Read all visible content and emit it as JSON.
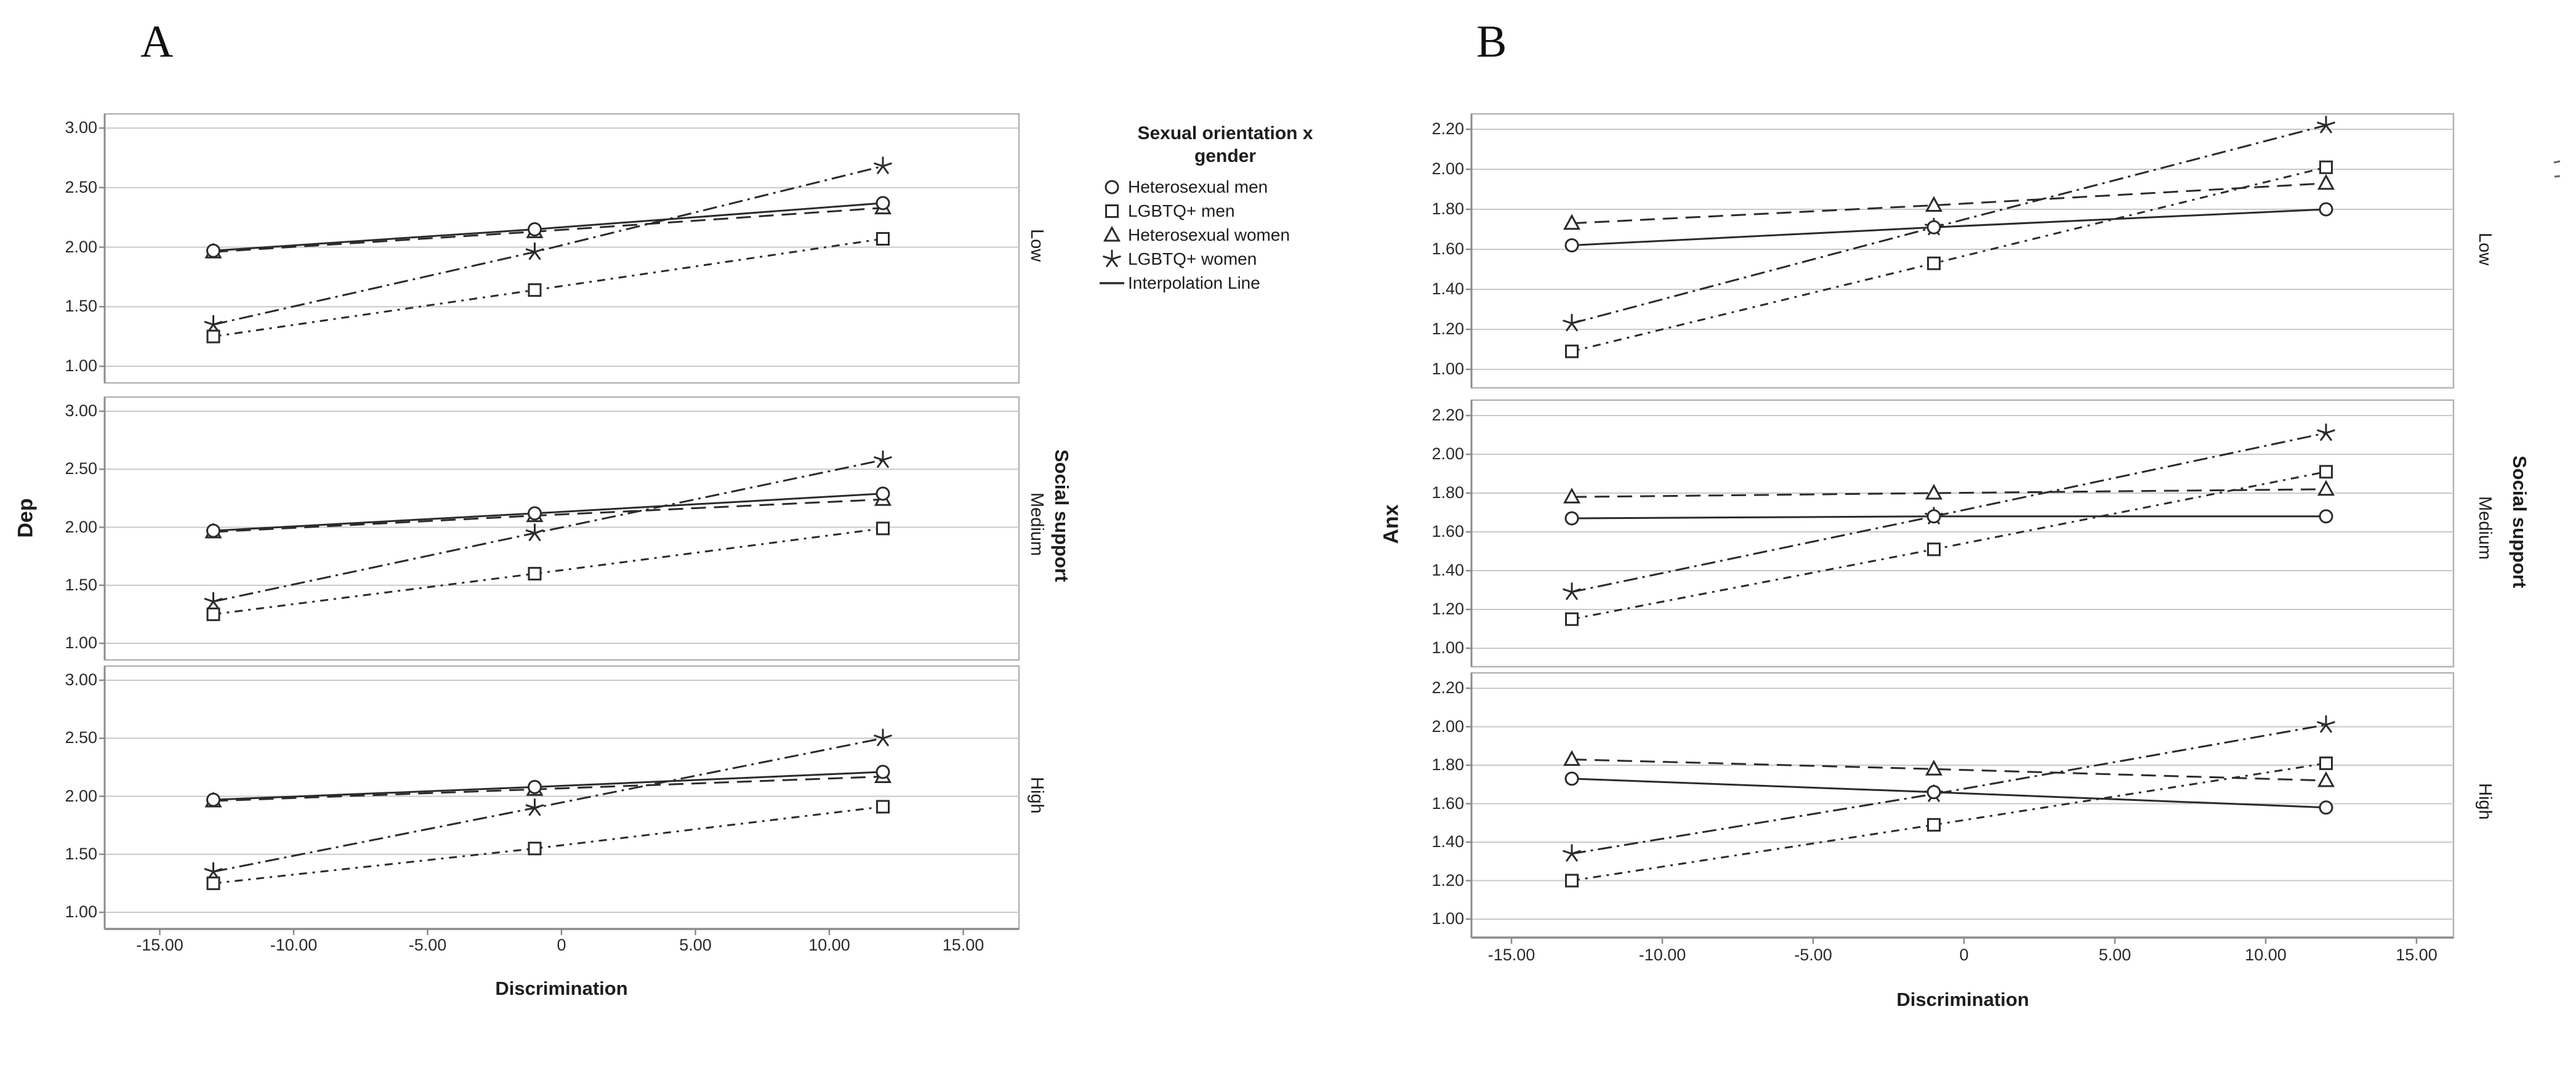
{
  "colors": {
    "series": "#2b2b2b",
    "grid": "#c9c9c9",
    "frame": "#b3b3b3",
    "axis": "#8c8c8c",
    "background": "#ffffff",
    "text": "#1d1d1d"
  },
  "legend": {
    "title_line1": "Sexual orientation x",
    "title_line2": "gender",
    "items": [
      {
        "marker": "circle",
        "label": "Heterosexual men"
      },
      {
        "marker": "square",
        "label": "LGBTQ+ men"
      },
      {
        "marker": "triangle",
        "label": "Heterosexual women"
      },
      {
        "marker": "star",
        "label": "LGBTQ+ women"
      },
      {
        "marker": "line",
        "label": "Interpolation Line"
      }
    ]
  },
  "chart_data": [
    {
      "type": "line",
      "panel_title": "A",
      "ylabel": "Dep",
      "xlabel": "Discrimination",
      "facet_axis_label": "Social support",
      "x": [
        -13,
        -1,
        12
      ],
      "x_tick_values": [
        -15,
        -10,
        -5,
        0,
        5,
        10,
        15
      ],
      "x_tick_labels": [
        "-15.00",
        "-10.00",
        "-5.00",
        "0",
        "5.00",
        "10.00",
        "15.00"
      ],
      "y_tick_values": [
        3.0,
        2.5,
        2.0,
        1.5,
        1.0
      ],
      "y_tick_labels": [
        "3.00",
        "2.50",
        "2.00",
        "1.50",
        "1.00"
      ],
      "ylim": [
        1.0,
        3.0
      ],
      "grid": true,
      "legend_position": "right-of-panel",
      "facets": [
        {
          "label": "Low",
          "series": [
            {
              "name": "Heterosexual men",
              "marker": "circle",
              "dash": "solid",
              "values": [
                1.97,
                2.15,
                2.37
              ]
            },
            {
              "name": "LGBTQ+ men",
              "marker": "square",
              "dash": "dash-dot-short",
              "values": [
                1.25,
                1.64,
                2.07
              ]
            },
            {
              "name": "Heterosexual women",
              "marker": "triangle",
              "dash": "dashed",
              "values": [
                1.96,
                2.13,
                2.33
              ]
            },
            {
              "name": "LGBTQ+ women",
              "marker": "star",
              "dash": "dash-dot",
              "values": [
                1.35,
                1.96,
                2.68
              ]
            }
          ]
        },
        {
          "label": "Medium",
          "series": [
            {
              "name": "Heterosexual men",
              "marker": "circle",
              "dash": "solid",
              "values": [
                1.97,
                2.12,
                2.29
              ]
            },
            {
              "name": "LGBTQ+ men",
              "marker": "square",
              "dash": "dash-dot-short",
              "values": [
                1.25,
                1.6,
                1.99
              ]
            },
            {
              "name": "Heterosexual women",
              "marker": "triangle",
              "dash": "dashed",
              "values": [
                1.96,
                2.1,
                2.24
              ]
            },
            {
              "name": "LGBTQ+ women",
              "marker": "star",
              "dash": "dash-dot",
              "values": [
                1.36,
                1.95,
                2.58
              ]
            }
          ]
        },
        {
          "label": "High",
          "series": [
            {
              "name": "Heterosexual men",
              "marker": "circle",
              "dash": "solid",
              "values": [
                1.97,
                2.08,
                2.21
              ]
            },
            {
              "name": "LGBTQ+ men",
              "marker": "square",
              "dash": "dash-dot-short",
              "values": [
                1.25,
                1.55,
                1.91
              ]
            },
            {
              "name": "Heterosexual women",
              "marker": "triangle",
              "dash": "dashed",
              "values": [
                1.96,
                2.06,
                2.17
              ]
            },
            {
              "name": "LGBTQ+ women",
              "marker": "star",
              "dash": "dash-dot",
              "values": [
                1.35,
                1.9,
                2.5
              ]
            }
          ]
        }
      ]
    },
    {
      "type": "line",
      "panel_title": "B",
      "ylabel": "Anx",
      "xlabel": "Discrimination",
      "facet_axis_label": "Social support",
      "x": [
        -13,
        -1,
        12
      ],
      "x_tick_values": [
        -15,
        -10,
        -5,
        0,
        5,
        10,
        15
      ],
      "x_tick_labels": [
        "-15.00",
        "-10.00",
        "-5.00",
        "0",
        "5.00",
        "10.00",
        "15.00"
      ],
      "y_tick_values": [
        2.2,
        2.0,
        1.8,
        1.6,
        1.4,
        1.2,
        1.0
      ],
      "y_tick_labels": [
        "2.20",
        "2.00",
        "1.80",
        "1.60",
        "1.40",
        "1.20",
        "1.00"
      ],
      "ylim": [
        1.0,
        2.2
      ],
      "grid": true,
      "legend_position": "left-of-panel",
      "facets": [
        {
          "label": "Low",
          "series": [
            {
              "name": "Heterosexual men",
              "marker": "circle",
              "dash": "solid",
              "values": [
                1.62,
                1.71,
                1.8
              ]
            },
            {
              "name": "LGBTQ+ men",
              "marker": "square",
              "dash": "dash-dot-short",
              "values": [
                1.09,
                1.53,
                2.01
              ]
            },
            {
              "name": "Heterosexual women",
              "marker": "triangle",
              "dash": "dashed",
              "values": [
                1.73,
                1.82,
                1.93
              ]
            },
            {
              "name": "LGBTQ+ women",
              "marker": "star",
              "dash": "dash-dot",
              "values": [
                1.23,
                1.71,
                2.22
              ]
            }
          ]
        },
        {
          "label": "Medium",
          "series": [
            {
              "name": "Heterosexual men",
              "marker": "circle",
              "dash": "solid",
              "values": [
                1.67,
                1.68,
                1.68
              ]
            },
            {
              "name": "LGBTQ+ men",
              "marker": "square",
              "dash": "dash-dot-short",
              "values": [
                1.15,
                1.51,
                1.91
              ]
            },
            {
              "name": "Heterosexual women",
              "marker": "triangle",
              "dash": "dashed",
              "values": [
                1.78,
                1.8,
                1.82
              ]
            },
            {
              "name": "LGBTQ+ women",
              "marker": "star",
              "dash": "dash-dot",
              "values": [
                1.29,
                1.68,
                2.11
              ]
            }
          ]
        },
        {
          "label": "High",
          "series": [
            {
              "name": "Heterosexual men",
              "marker": "circle",
              "dash": "solid",
              "values": [
                1.73,
                1.66,
                1.58
              ]
            },
            {
              "name": "LGBTQ+ men",
              "marker": "square",
              "dash": "dash-dot-short",
              "values": [
                1.2,
                1.49,
                1.81
              ]
            },
            {
              "name": "Heterosexual women",
              "marker": "triangle",
              "dash": "dashed",
              "values": [
                1.83,
                1.78,
                1.72
              ]
            },
            {
              "name": "LGBTQ+ women",
              "marker": "star",
              "dash": "dash-dot",
              "values": [
                1.34,
                1.65,
                2.01
              ]
            }
          ]
        }
      ]
    }
  ]
}
